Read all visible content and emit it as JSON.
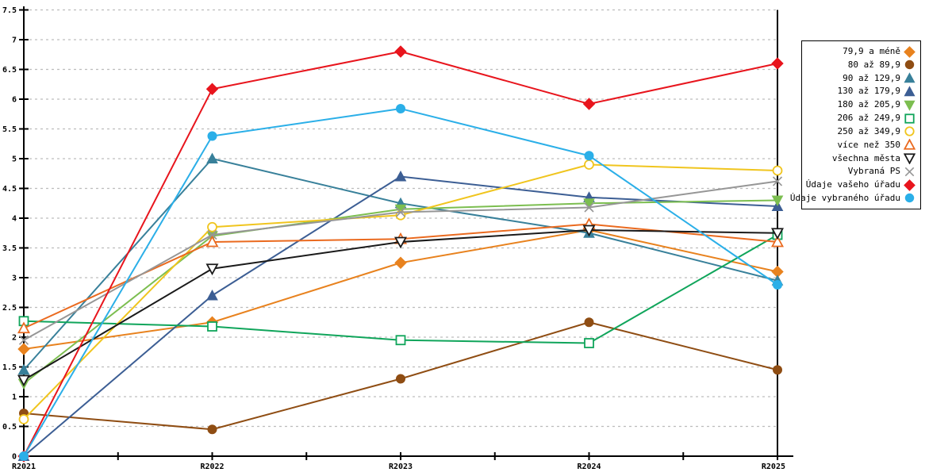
{
  "chart_data": {
    "type": "line",
    "title": "",
    "xlabel": "",
    "ylabel": "",
    "categories": [
      "R2021",
      "R2022",
      "R2023",
      "R2024",
      "R2025"
    ],
    "ylim": [
      0,
      7.5
    ],
    "ytick_step": 0.5,
    "grid": "horizontal-dashed",
    "legend_position": "right",
    "series": [
      {
        "name": "79,9 a méně",
        "color": "#E8821E",
        "marker": "diamond",
        "filled": true,
        "values": [
          1.8,
          2.25,
          3.25,
          3.8,
          3.1
        ]
      },
      {
        "name": "80 až 89,9",
        "color": "#8F4D13",
        "marker": "circle",
        "filled": true,
        "values": [
          0.72,
          0.45,
          1.3,
          2.25,
          1.45
        ]
      },
      {
        "name": "90 až 129,9",
        "color": "#38809A",
        "marker": "triangle-up",
        "filled": true,
        "values": [
          1.45,
          5.0,
          4.25,
          3.75,
          2.95
        ]
      },
      {
        "name": "130 až 179,9",
        "color": "#3C5E94",
        "marker": "triangle-up",
        "filled": true,
        "values": [
          0,
          2.7,
          4.7,
          4.35,
          4.2
        ]
      },
      {
        "name": "180 až 205,9",
        "color": "#7CBE50",
        "marker": "triangle-down",
        "filled": true,
        "values": [
          1.22,
          3.7,
          4.15,
          4.25,
          4.3
        ]
      },
      {
        "name": "206 až 249,9",
        "color": "#10A55B",
        "marker": "square",
        "filled": false,
        "values": [
          2.27,
          2.18,
          1.95,
          1.9,
          3.72
        ]
      },
      {
        "name": "250 až 349,9",
        "color": "#F0C51E",
        "marker": "circle",
        "filled": false,
        "values": [
          0.62,
          3.85,
          4.05,
          4.9,
          4.8
        ]
      },
      {
        "name": "více než 350",
        "color": "#EA6A1F",
        "marker": "triangle-up",
        "filled": false,
        "values": [
          2.15,
          3.6,
          3.65,
          3.9,
          3.6
        ]
      },
      {
        "name": "všechna města",
        "color": "#1A1A1A",
        "marker": "triangle-down",
        "filled": false,
        "values": [
          1.28,
          3.15,
          3.6,
          3.8,
          3.75
        ]
      },
      {
        "name": "Vybraná PS",
        "color": "#969696",
        "marker": "x",
        "filled": false,
        "values": [
          1.95,
          3.72,
          4.1,
          4.18,
          4.62
        ]
      },
      {
        "name": "Údaje vašeho úřadu",
        "color": "#E8151D",
        "marker": "diamond",
        "filled": true,
        "values": [
          0,
          6.17,
          6.8,
          5.92,
          6.6
        ]
      },
      {
        "name": "Údaje vybraného úřadu",
        "color": "#2BAFE8",
        "marker": "circle",
        "filled": true,
        "values": [
          0,
          5.38,
          5.84,
          5.05,
          2.88
        ]
      }
    ],
    "axis_color": "#000000",
    "gridline_color": "#bdbdbd"
  }
}
